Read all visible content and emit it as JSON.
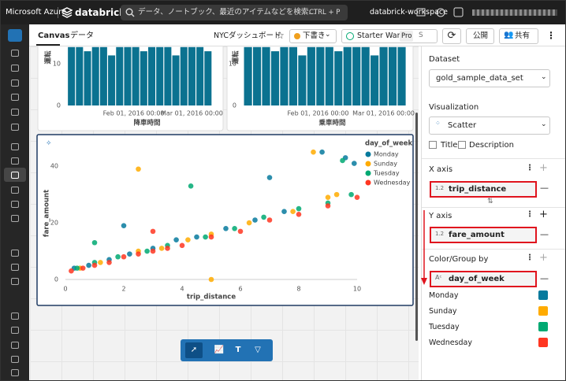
{
  "topbar": {
    "brand": "Microsoft Azure",
    "product": "databricks",
    "search": "データ、ノートブック、最近のアイテムなどを検索...",
    "shortcut": "CTRL + P",
    "workspace": "databrick-workspace"
  },
  "toolbar": {
    "tabs": [
      "Canvas",
      "データ"
    ],
    "dashboard": "NYCダッシュボード",
    "status": "下書き",
    "warehouse": "Starter Ware...",
    "tier": "Pro",
    "warehouse_state": "S",
    "publish": "公開",
    "share": "共有"
  },
  "chart_data": [
    {
      "type": "bar",
      "y_label": "運転",
      "x_label": "降車時間",
      "color": "#0b7290",
      "x": [
        "2016-01-01",
        "2016-01-05",
        "2016-01-09",
        "2016-01-13",
        "2016-01-17",
        "2016-01-21",
        "2016-01-25",
        "2016-01-29",
        "2016-02-02",
        "2016-02-06",
        "2016-02-10",
        "2016-02-14",
        "2016-02-18",
        "2016-02-22",
        "2016-02-26",
        "2016-03-01",
        "2016-03-05",
        "2016-03-09"
      ],
      "values": [
        14,
        14,
        13,
        14,
        14,
        12,
        14,
        14,
        14,
        13,
        14,
        14,
        14,
        12,
        14,
        14,
        14,
        13
      ],
      "xlim": [
        "2015-12-29",
        "2016-03-13"
      ],
      "xticks": [
        {
          "value": "2016-02-01",
          "label": "Feb 01, 2016 00:00"
        },
        {
          "value": "2016-03-01",
          "label": "Mar 01, 2016 00:00"
        }
      ],
      "ylim": [
        0,
        14
      ],
      "yticks": [
        0,
        10
      ]
    },
    {
      "type": "bar",
      "y_label": "運転",
      "x_label": "乗車時間",
      "color": "#0b7290",
      "x": [
        "2016-01-01",
        "2016-01-05",
        "2016-01-09",
        "2016-01-13",
        "2016-01-17",
        "2016-01-21",
        "2016-01-25",
        "2016-01-29",
        "2016-02-02",
        "2016-02-06",
        "2016-02-10",
        "2016-02-14",
        "2016-02-18",
        "2016-02-22",
        "2016-02-26",
        "2016-03-01",
        "2016-03-05",
        "2016-03-09"
      ],
      "values": [
        14,
        14,
        14,
        13,
        14,
        14,
        12,
        14,
        14,
        14,
        13,
        14,
        14,
        14,
        12,
        14,
        14,
        14
      ],
      "xlim": [
        "2015-12-29",
        "2016-03-13"
      ],
      "xticks": [
        {
          "value": "2016-02-01",
          "label": "Feb 01, 2016 00:00"
        },
        {
          "value": "2016-03-01",
          "label": "Mar 01, 2016 00:00"
        }
      ],
      "ylim": [
        0,
        14
      ],
      "yticks": [
        0,
        10
      ]
    },
    {
      "type": "scatter",
      "x_label": "trip_distance",
      "y_label": "fare_amount",
      "legend_title": "day_of_week",
      "legend": "right",
      "xlim": [
        0,
        10
      ],
      "xticks": [
        0,
        2,
        4,
        6,
        8,
        10
      ],
      "ylim": [
        0,
        47
      ],
      "yticks": [
        0,
        20,
        40
      ],
      "series": [
        {
          "name": "Monday",
          "color": "#077a9d",
          "x": [
            0.3,
            0.8,
            1.5,
            2.2,
            3.0,
            3.8,
            4.5,
            5.5,
            6.5,
            7.5,
            8.8,
            9.6,
            9.9,
            2.0,
            7.0
          ],
          "values": [
            4,
            5,
            7,
            9,
            11,
            14,
            15,
            18,
            21,
            24,
            45,
            43,
            41,
            19,
            36
          ]
        },
        {
          "name": "Sunday",
          "color": "#ffab00",
          "x": [
            0.5,
            1.2,
            2.5,
            3.3,
            4.2,
            5.0,
            6.3,
            7.8,
            8.5,
            9.3,
            2.5,
            5.0,
            9.0
          ],
          "values": [
            4,
            6,
            10,
            11,
            14,
            16,
            20,
            24,
            45,
            30,
            39,
            0,
            29
          ]
        },
        {
          "name": "Tuesday",
          "color": "#00a972",
          "x": [
            0.4,
            1.0,
            1.8,
            2.8,
            3.5,
            4.8,
            5.8,
            6.8,
            8.0,
            9.0,
            9.8,
            1.0,
            4.3,
            9.5
          ],
          "values": [
            4,
            6,
            8,
            10,
            12,
            15,
            18,
            22,
            25,
            27,
            30,
            13,
            33,
            42
          ]
        },
        {
          "name": "Wednesday",
          "color": "#ff3621",
          "x": [
            0.2,
            0.6,
            1.0,
            1.5,
            2.0,
            2.5,
            3.0,
            3.5,
            4.0,
            5.0,
            6.0,
            7.0,
            8.0,
            9.0,
            10.0,
            3.0
          ],
          "values": [
            3,
            4,
            5,
            6,
            8,
            9,
            10,
            11,
            12,
            15,
            17,
            21,
            23,
            26,
            29,
            17
          ]
        }
      ]
    }
  ],
  "panel": {
    "dataset_label": "Dataset",
    "dataset": "gold_sample_data_set",
    "visualization_label": "Visualization",
    "visualization": "Scatter",
    "title_option": "Title",
    "description_option": "Description",
    "x_axis_label": "X axis",
    "x_field_type": "1.2",
    "x_field": "trip_distance",
    "y_axis_label": "Y axis",
    "y_field_type": "1.2",
    "y_field": "fare_amount",
    "color_label": "Color/Group by",
    "color_field": "day_of_week"
  }
}
